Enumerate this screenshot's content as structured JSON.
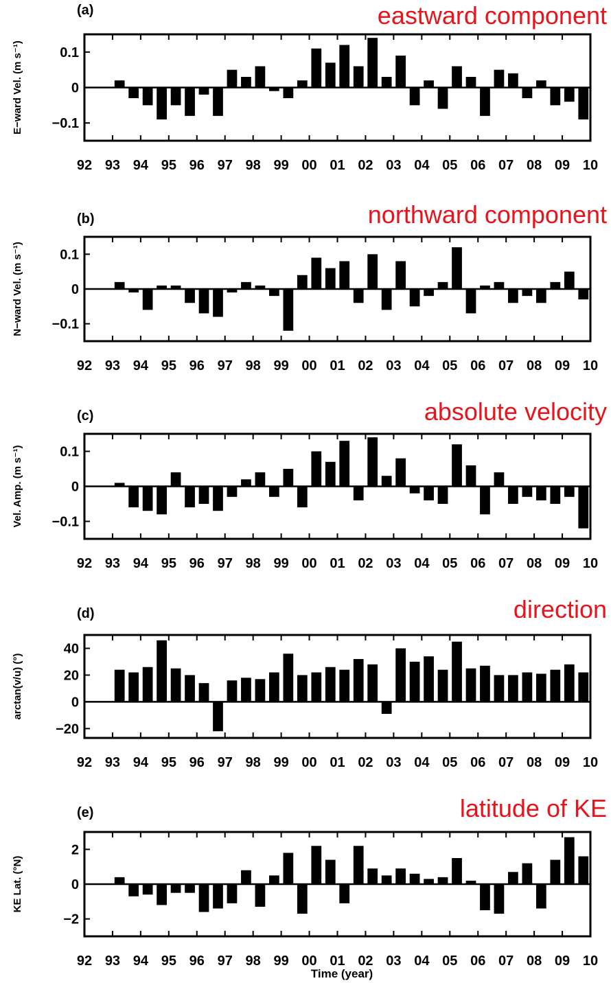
{
  "figure": {
    "xlabel": "Time (year)"
  },
  "chart_data": [
    {
      "type": "bar",
      "panel_label": "(a)",
      "title": "eastward component",
      "ylabel": "E−ward Vel. (m s⁻¹)",
      "ylim": [
        -0.15,
        0.15
      ],
      "xlim": [
        1992,
        2010
      ],
      "yticks": [
        0.1,
        0,
        -0.1
      ],
      "ytick_labels": [
        "0.1",
        "0",
        "−0.1"
      ],
      "xtick_labels": [
        "92",
        "93",
        "94",
        "95",
        "96",
        "97",
        "98",
        "99",
        "00",
        "01",
        "02",
        "03",
        "04",
        "05",
        "06",
        "07",
        "08",
        "09",
        "10"
      ],
      "x": [
        1993.0,
        1993.5,
        1994.0,
        1994.5,
        1995.0,
        1995.5,
        1996.0,
        1996.5,
        1997.0,
        1997.5,
        1998.0,
        1998.5,
        1999.0,
        1999.5,
        2000.0,
        2000.5,
        2001.0,
        2001.5,
        2002.0,
        2002.5,
        2003.0,
        2003.5,
        2004.0,
        2004.5,
        2005.0,
        2005.5,
        2006.0,
        2006.5,
        2007.0,
        2007.5,
        2008.0,
        2008.5,
        2009.0,
        2009.5
      ],
      "values": [
        0.02,
        -0.03,
        -0.05,
        -0.09,
        -0.05,
        -0.08,
        -0.02,
        -0.08,
        0.05,
        0.03,
        0.06,
        -0.01,
        -0.03,
        0.02,
        0.11,
        0.07,
        0.12,
        0.06,
        0.14,
        0.03,
        0.09,
        -0.05,
        0.02,
        -0.06,
        0.06,
        0.03,
        -0.08,
        0.05,
        0.04,
        -0.03,
        0.02,
        -0.05,
        -0.04,
        -0.09
      ]
    },
    {
      "type": "bar",
      "panel_label": "(b)",
      "title": "northward component",
      "ylabel": "N−ward Vel. (m s⁻¹)",
      "ylim": [
        -0.15,
        0.15
      ],
      "xlim": [
        1992,
        2010
      ],
      "yticks": [
        0.1,
        0,
        -0.1
      ],
      "ytick_labels": [
        "0.1",
        "0",
        "−0.1"
      ],
      "xtick_labels": [
        "92",
        "93",
        "94",
        "95",
        "96",
        "97",
        "98",
        "99",
        "00",
        "01",
        "02",
        "03",
        "04",
        "05",
        "06",
        "07",
        "08",
        "09",
        "10"
      ],
      "x": [
        1993.0,
        1993.5,
        1994.0,
        1994.5,
        1995.0,
        1995.5,
        1996.0,
        1996.5,
        1997.0,
        1997.5,
        1998.0,
        1998.5,
        1999.0,
        1999.5,
        2000.0,
        2000.5,
        2001.0,
        2001.5,
        2002.0,
        2002.5,
        2003.0,
        2003.5,
        2004.0,
        2004.5,
        2005.0,
        2005.5,
        2006.0,
        2006.5,
        2007.0,
        2007.5,
        2008.0,
        2008.5,
        2009.0,
        2009.5
      ],
      "values": [
        0.02,
        -0.01,
        -0.06,
        0.01,
        0.01,
        -0.04,
        -0.07,
        -0.08,
        -0.01,
        0.02,
        0.01,
        -0.02,
        -0.12,
        0.04,
        0.09,
        0.06,
        0.08,
        -0.04,
        0.1,
        -0.06,
        0.08,
        -0.05,
        -0.02,
        0.02,
        0.12,
        -0.07,
        0.01,
        0.02,
        -0.04,
        -0.02,
        -0.04,
        0.02,
        0.05,
        -0.03
      ]
    },
    {
      "type": "bar",
      "panel_label": "(c)",
      "title": "absolute velocity",
      "ylabel": "Vel. Amp. (m s⁻¹)",
      "ylim": [
        -0.15,
        0.15
      ],
      "xlim": [
        1992,
        2010
      ],
      "yticks": [
        0.1,
        0,
        -0.1
      ],
      "ytick_labels": [
        "0.1",
        "0",
        "−0.1"
      ],
      "xtick_labels": [
        "92",
        "93",
        "94",
        "95",
        "96",
        "97",
        "98",
        "99",
        "00",
        "01",
        "02",
        "03",
        "04",
        "05",
        "06",
        "07",
        "08",
        "09",
        "10"
      ],
      "x": [
        1993.0,
        1993.5,
        1994.0,
        1994.5,
        1995.0,
        1995.5,
        1996.0,
        1996.5,
        1997.0,
        1997.5,
        1998.0,
        1998.5,
        1999.0,
        1999.5,
        2000.0,
        2000.5,
        2001.0,
        2001.5,
        2002.0,
        2002.5,
        2003.0,
        2003.5,
        2004.0,
        2004.5,
        2005.0,
        2005.5,
        2006.0,
        2006.5,
        2007.0,
        2007.5,
        2008.0,
        2008.5,
        2009.0,
        2009.5
      ],
      "values": [
        0.01,
        -0.06,
        -0.07,
        -0.08,
        0.04,
        -0.06,
        -0.05,
        -0.07,
        -0.03,
        0.02,
        0.04,
        -0.03,
        0.05,
        -0.06,
        0.1,
        0.07,
        0.13,
        -0.04,
        0.14,
        0.03,
        0.08,
        -0.02,
        -0.04,
        -0.05,
        0.12,
        0.06,
        -0.08,
        0.04,
        -0.05,
        -0.03,
        -0.04,
        -0.05,
        -0.03,
        -0.12
      ]
    },
    {
      "type": "bar",
      "panel_label": "(d)",
      "title": "direction",
      "ylabel": "arctan(v/u) (°)",
      "ylim": [
        -27,
        50
      ],
      "xlim": [
        1992,
        2010
      ],
      "yticks": [
        40,
        20,
        0,
        -20
      ],
      "ytick_labels": [
        "40",
        "20",
        "0",
        "−20"
      ],
      "xtick_labels": [
        "92",
        "93",
        "94",
        "95",
        "96",
        "97",
        "98",
        "99",
        "00",
        "01",
        "02",
        "03",
        "04",
        "05",
        "06",
        "07",
        "08",
        "09",
        "10"
      ],
      "x": [
        1993.0,
        1993.5,
        1994.0,
        1994.5,
        1995.0,
        1995.5,
        1996.0,
        1996.5,
        1997.0,
        1997.5,
        1998.0,
        1998.5,
        1999.0,
        1999.5,
        2000.0,
        2000.5,
        2001.0,
        2001.5,
        2002.0,
        2002.5,
        2003.0,
        2003.5,
        2004.0,
        2004.5,
        2005.0,
        2005.5,
        2006.0,
        2006.5,
        2007.0,
        2007.5,
        2008.0,
        2008.5,
        2009.0,
        2009.5
      ],
      "values": [
        24,
        22,
        26,
        46,
        25,
        20,
        14,
        -22,
        16,
        18,
        17,
        22,
        36,
        20,
        22,
        26,
        24,
        32,
        28,
        -9,
        40,
        30,
        34,
        24,
        45,
        25,
        27,
        20,
        20,
        22,
        21,
        24,
        28,
        22
      ]
    },
    {
      "type": "bar",
      "panel_label": "(e)",
      "title": "latitude of KE",
      "ylabel": "KE Lat. (°N)",
      "ylim": [
        -3,
        3
      ],
      "xlim": [
        1992,
        2010
      ],
      "yticks": [
        2,
        0,
        -2
      ],
      "ytick_labels": [
        "2",
        "0",
        "−2"
      ],
      "xtick_labels": [
        "92",
        "93",
        "94",
        "95",
        "96",
        "97",
        "98",
        "99",
        "00",
        "01",
        "02",
        "03",
        "04",
        "05",
        "06",
        "07",
        "08",
        "09",
        "10"
      ],
      "x": [
        1993.0,
        1993.5,
        1994.0,
        1994.5,
        1995.0,
        1995.5,
        1996.0,
        1996.5,
        1997.0,
        1997.5,
        1998.0,
        1998.5,
        1999.0,
        1999.5,
        2000.0,
        2000.5,
        2001.0,
        2001.5,
        2002.0,
        2002.5,
        2003.0,
        2003.5,
        2004.0,
        2004.5,
        2005.0,
        2005.5,
        2006.0,
        2006.5,
        2007.0,
        2007.5,
        2008.0,
        2008.5,
        2009.0,
        2009.5
      ],
      "values": [
        0.4,
        -0.7,
        -0.6,
        -1.2,
        -0.5,
        -0.5,
        -1.6,
        -1.4,
        -1.1,
        0.8,
        -1.3,
        0.5,
        1.8,
        -1.7,
        2.2,
        1.4,
        -1.1,
        2.2,
        0.9,
        0.5,
        0.9,
        0.6,
        0.3,
        0.4,
        1.5,
        0.2,
        -1.5,
        -1.7,
        0.7,
        1.2,
        -1.4,
        1.4,
        2.7,
        1.6
      ]
    }
  ]
}
